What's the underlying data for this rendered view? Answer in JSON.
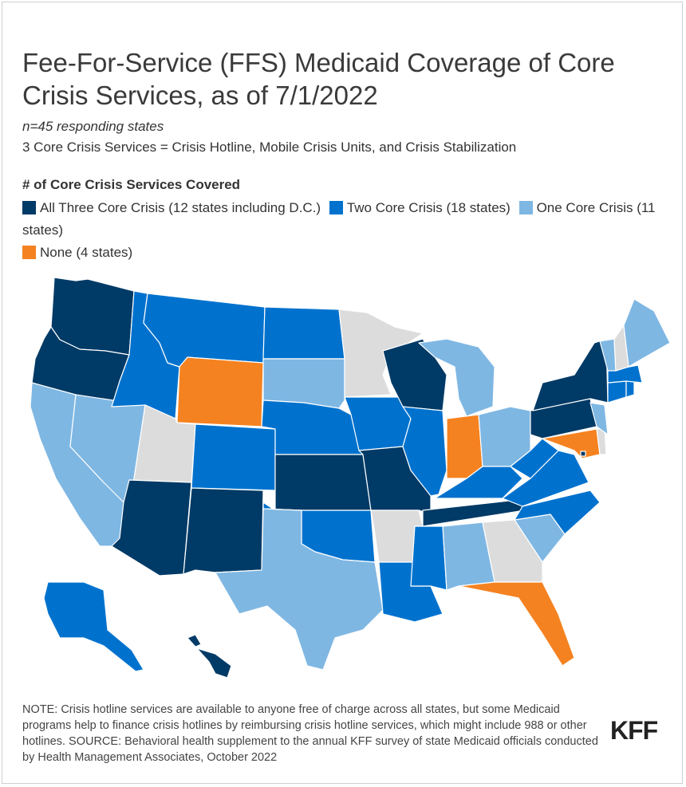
{
  "title": "Fee-For-Service (FFS) Medicaid Coverage of Core Crisis Services, as of 7/1/2022",
  "subtitle": "n=45 responding states",
  "description": "3 Core Crisis Services = Crisis Hotline, Mobile Crisis Units, and Crisis Stabilization",
  "legend": {
    "title": "# of Core Crisis Services Covered",
    "items": [
      {
        "label": "All Three Core Crisis (12 states including D.C.)",
        "color": "#003a66"
      },
      {
        "label": "Two Core Crisis (18 states)",
        "color": "#0072ce"
      },
      {
        "label": "One Core Crisis (11 states)",
        "color": "#7fb7e3"
      },
      {
        "label": "None (4 states)",
        "color": "#f58220"
      }
    ],
    "no_response_color": "#dcdcdc"
  },
  "states": {
    "all_three": [
      "WA",
      "OR",
      "AZ",
      "NM",
      "KS",
      "MO",
      "WI",
      "TN",
      "NY",
      "PA",
      "HI",
      "DC"
    ],
    "two": [
      "ID",
      "MT",
      "ND",
      "NE",
      "CO",
      "OK",
      "IA",
      "IL",
      "LA",
      "MS",
      "KY",
      "WV",
      "VA",
      "NC",
      "CT",
      "MA",
      "RI",
      "AK"
    ],
    "one": [
      "CA",
      "NV",
      "SD",
      "TX",
      "MI",
      "OH",
      "AL",
      "SC",
      "NJ",
      "VT",
      "ME"
    ],
    "none": [
      "WY",
      "IN",
      "FL",
      "MD"
    ],
    "no_response": [
      "UT",
      "MN",
      "AR",
      "GA",
      "NH",
      "DE"
    ]
  },
  "note": "NOTE: Crisis hotline services are available to anyone free of charge across all states, but some Medicaid programs help to finance crisis hotlines by reimbursing crisis hotline services, which might include 988 or other hotlines. SOURCE: Behavioral health supplement to the annual KFF survey of state Medicaid officials conducted by Health Management Associates, October 2022",
  "logo": "KFF"
}
